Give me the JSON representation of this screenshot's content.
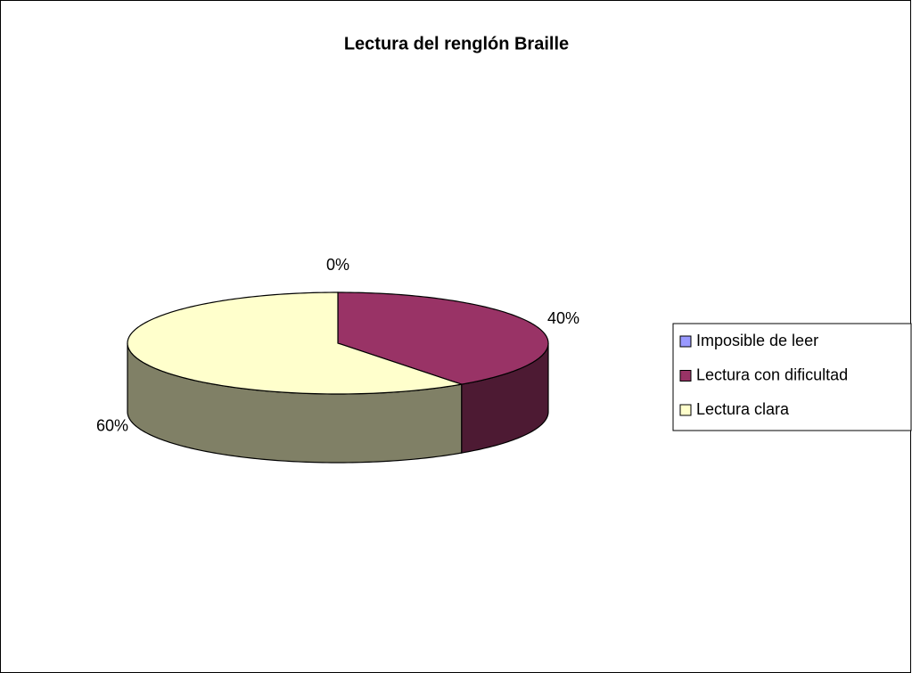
{
  "chart_data": {
    "type": "pie",
    "title": "Lectura del renglón Braille",
    "categories": [
      "Imposible de leer",
      "Lectura con dificultad",
      "Lectura clara"
    ],
    "values": [
      0,
      40,
      60
    ],
    "value_labels": [
      "0%",
      "40%",
      "60%"
    ],
    "colors": [
      "#9999ff",
      "#993366",
      "#ffffcc"
    ],
    "legend": "right"
  }
}
